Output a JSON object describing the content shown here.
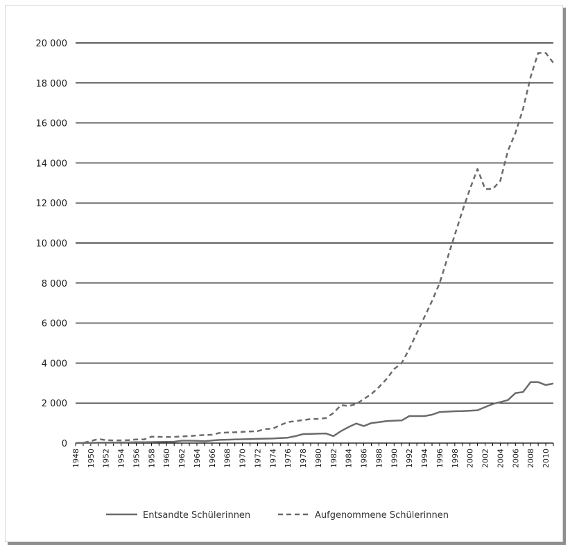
{
  "chart_data": {
    "type": "line",
    "title": "",
    "xlabel": "",
    "ylabel": "",
    "xlim": [
      1948,
      2011
    ],
    "ylim": [
      0,
      20000
    ],
    "y_ticks": [
      0,
      2000,
      4000,
      6000,
      8000,
      10000,
      12000,
      14000,
      16000,
      18000,
      20000
    ],
    "y_tick_labels": [
      "0",
      "2 000",
      "4 000",
      "6 000",
      "8 000",
      "10 000",
      "12 000",
      "14 000",
      "16 000",
      "18 000",
      "20 000"
    ],
    "x_tick_labels": [
      "1948",
      "1950",
      "1952",
      "1954",
      "1956",
      "1958",
      "1960",
      "1962",
      "1964",
      "1966",
      "1968",
      "1970",
      "1972",
      "1974",
      "1976",
      "1978",
      "1980",
      "1982",
      "1984",
      "1986",
      "1988",
      "1990",
      "1992",
      "1994",
      "1996",
      "1998",
      "2000",
      "2002",
      "2004",
      "2006",
      "2008",
      "2010"
    ],
    "grid": "horizontal",
    "legend_position": "bottom",
    "colors": {
      "line": "#6b6b6b",
      "grid": "#000000",
      "axis": "#000000"
    },
    "x": [
      1948,
      1949,
      1950,
      1951,
      1952,
      1953,
      1954,
      1955,
      1956,
      1957,
      1958,
      1959,
      1960,
      1961,
      1962,
      1963,
      1964,
      1965,
      1966,
      1967,
      1968,
      1969,
      1970,
      1971,
      1972,
      1973,
      1974,
      1975,
      1976,
      1977,
      1978,
      1979,
      1980,
      1981,
      1982,
      1983,
      1984,
      1985,
      1986,
      1987,
      1988,
      1989,
      1990,
      1991,
      1992,
      1993,
      1994,
      1995,
      1996,
      1997,
      1998,
      1999,
      2000,
      2001,
      2002,
      2003,
      2004,
      2005,
      2006,
      2007,
      2008,
      2009,
      2010,
      2011
    ],
    "series": [
      {
        "name": "Entsandte Schülerinnen",
        "style": "solid",
        "values": [
          5,
          10,
          15,
          20,
          25,
          25,
          30,
          35,
          40,
          45,
          50,
          55,
          60,
          70,
          120,
          120,
          110,
          90,
          130,
          160,
          170,
          180,
          190,
          200,
          210,
          220,
          230,
          250,
          270,
          350,
          450,
          460,
          470,
          480,
          350,
          600,
          800,
          980,
          850,
          1000,
          1050,
          1100,
          1120,
          1130,
          1350,
          1350,
          1350,
          1420,
          1550,
          1570,
          1590,
          1600,
          1620,
          1640,
          1800,
          1950,
          2050,
          2150,
          2500,
          2550,
          3050,
          3050,
          2900,
          2980
        ]
      },
      {
        "name": "Aufgenommene Schülerinnen",
        "style": "dashed",
        "values": [
          5,
          10,
          100,
          200,
          150,
          130,
          140,
          150,
          180,
          180,
          320,
          310,
          300,
          310,
          330,
          350,
          380,
          400,
          420,
          510,
          530,
          540,
          560,
          580,
          600,
          700,
          720,
          900,
          1050,
          1100,
          1150,
          1200,
          1210,
          1250,
          1500,
          1900,
          1850,
          1950,
          2200,
          2450,
          2800,
          3200,
          3700,
          4000,
          4700,
          5500,
          6300,
          7100,
          8000,
          9200,
          10400,
          11600,
          12700,
          13700,
          12700,
          12700,
          13100,
          14600,
          15500,
          16700,
          18300,
          19500,
          19500,
          19000
        ]
      }
    ]
  }
}
